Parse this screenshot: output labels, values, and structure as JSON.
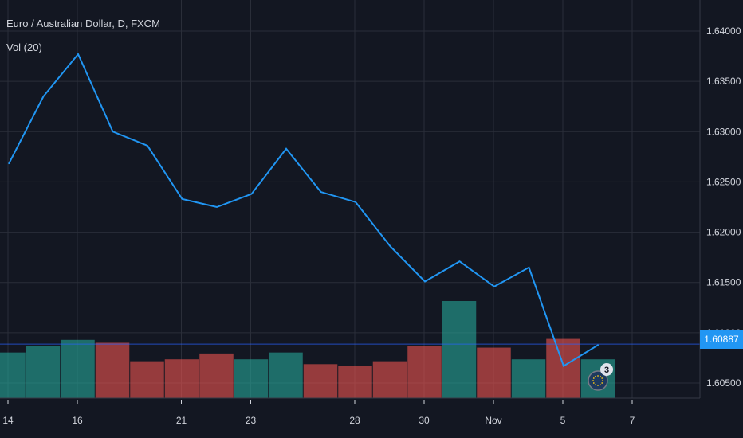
{
  "symbol_legend": "Euro / Australian Dollar, D, FXCM",
  "volume_legend": "Vol (20)",
  "last_price_label": "1.60887",
  "event_badge_count": "3",
  "colors": {
    "background": "#131722",
    "grid": "#2a2e39",
    "line": "#2196f3",
    "vol_up": "#26a69a",
    "vol_down": "#ef5350",
    "price_line": "#2962ff",
    "axis_text": "#d1d4dc"
  },
  "chart_data": {
    "type": "line",
    "title": "Euro / Australian Dollar, D, FXCM",
    "x_tick_labels": [
      "14",
      "16",
      "21",
      "23",
      "28",
      "30",
      "Nov",
      "5",
      "7"
    ],
    "y_tick_labels": [
      "1.64000",
      "1.63500",
      "1.63000",
      "1.62500",
      "1.62000",
      "1.61500",
      "1.61000",
      "1.60500"
    ],
    "ylim": [
      1.6035,
      1.6415
    ],
    "grid": true,
    "price_series": {
      "name": "Euro / Australian Dollar",
      "values": [
        1.6268,
        1.6335,
        1.6377,
        1.63,
        1.6286,
        1.6233,
        1.6225,
        1.6238,
        1.6283,
        1.624,
        1.623,
        1.6186,
        1.6151,
        1.6171,
        1.6146,
        1.6165,
        1.6067,
        1.6088
      ]
    },
    "volume_series": {
      "name": "Vol (20)",
      "values": [
        47,
        54,
        60,
        57,
        38,
        40,
        46,
        40,
        47,
        35,
        33,
        38,
        54,
        100,
        52,
        40,
        61,
        40
      ],
      "directions": [
        "up",
        "up",
        "up",
        "down",
        "down",
        "down",
        "down",
        "up",
        "up",
        "down",
        "down",
        "down",
        "down",
        "up",
        "down",
        "up",
        "down",
        "up"
      ]
    },
    "last_price": 1.60887
  }
}
